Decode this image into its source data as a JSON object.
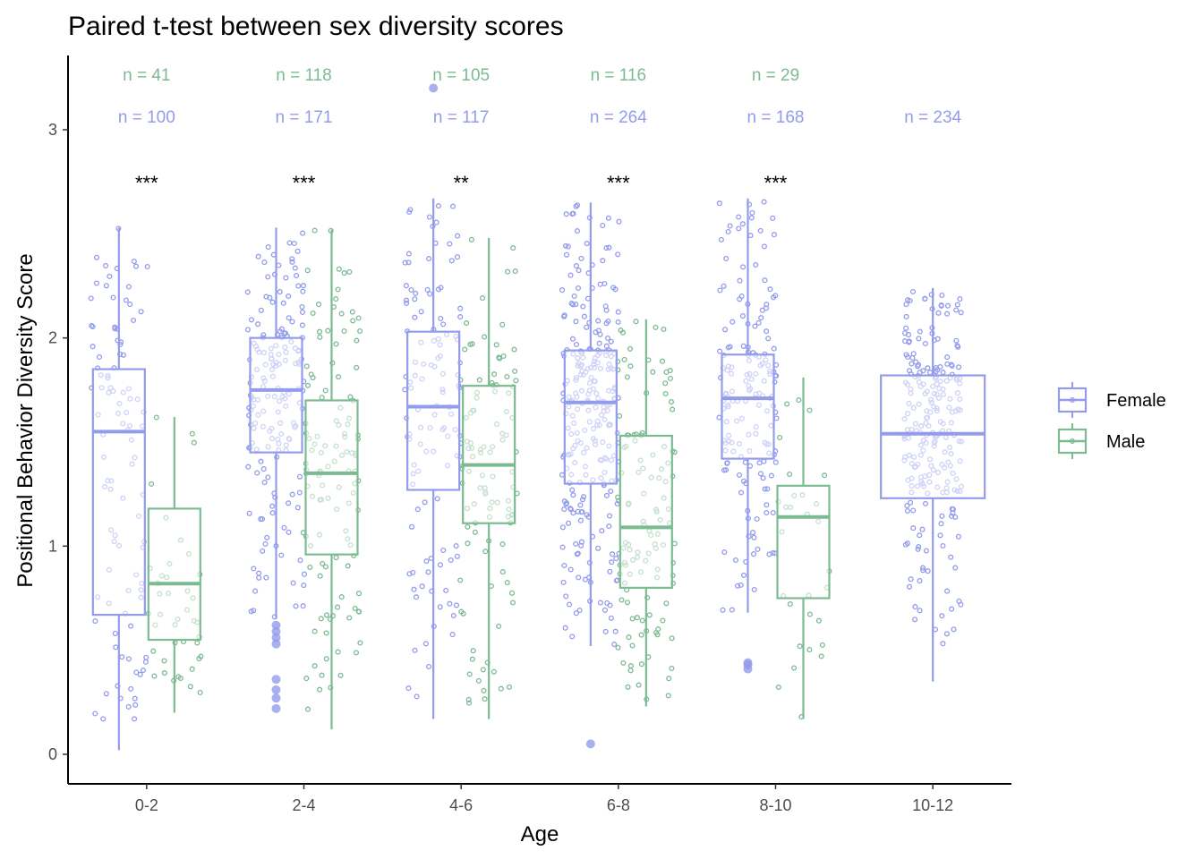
{
  "colors": {
    "Female": "#939CEB",
    "Male": "#7CBB92"
  },
  "chart_data": {
    "type": "box",
    "title": "Paired t-test between sex diversity scores",
    "xlabel": "Age",
    "ylabel": "Positional Behavior Diversity Score",
    "ylim": [
      -0.15,
      3.35
    ],
    "yticks": [
      0,
      1,
      2,
      3
    ],
    "categories": [
      "0-2",
      "2-4",
      "4-6",
      "6-8",
      "8-10",
      "10-12"
    ],
    "legend": {
      "position": "right",
      "entries": [
        "Female",
        "Male"
      ]
    },
    "series": [
      {
        "name": "Female",
        "n_labels": [
          "n = 100",
          "n = 171",
          "n = 117",
          "n = 264",
          "n = 168",
          "n = 234"
        ],
        "boxes": [
          {
            "q1": 0.67,
            "median": 1.55,
            "q3": 1.85,
            "whisker_low": 0.02,
            "whisker_high": 2.53,
            "outliers": []
          },
          {
            "q1": 1.45,
            "median": 1.75,
            "q3": 2.0,
            "whisker_low": 0.65,
            "whisker_high": 2.53,
            "outliers": [
              0.22,
              0.27,
              0.31,
              0.36,
              0.53,
              0.56,
              0.59,
              0.62
            ]
          },
          {
            "q1": 1.27,
            "median": 1.67,
            "q3": 2.03,
            "whisker_low": 0.17,
            "whisker_high": 2.67,
            "outliers": [
              3.2
            ]
          },
          {
            "q1": 1.3,
            "median": 1.69,
            "q3": 1.94,
            "whisker_low": 0.52,
            "whisker_high": 2.65,
            "outliers": [
              0.05
            ]
          },
          {
            "q1": 1.42,
            "median": 1.71,
            "q3": 1.92,
            "whisker_low": 0.68,
            "whisker_high": 2.67,
            "outliers": [
              0.41,
              0.43,
              0.44
            ]
          },
          {
            "q1": 1.23,
            "median": 1.54,
            "q3": 1.82,
            "whisker_low": 0.35,
            "whisker_high": 2.24,
            "outliers": []
          }
        ]
      },
      {
        "name": "Male",
        "n_labels": [
          "n = 41",
          "n = 118",
          "n = 105",
          "n = 116",
          "n = 29",
          ""
        ],
        "boxes": [
          {
            "q1": 0.55,
            "median": 0.82,
            "q3": 1.18,
            "whisker_low": 0.2,
            "whisker_high": 1.62,
            "outliers": []
          },
          {
            "q1": 0.96,
            "median": 1.35,
            "q3": 1.7,
            "whisker_low": 0.12,
            "whisker_high": 2.52,
            "outliers": []
          },
          {
            "q1": 1.11,
            "median": 1.39,
            "q3": 1.77,
            "whisker_low": 0.17,
            "whisker_high": 2.48,
            "outliers": []
          },
          {
            "q1": 0.8,
            "median": 1.09,
            "q3": 1.53,
            "whisker_low": 0.23,
            "whisker_high": 2.09,
            "outliers": []
          },
          {
            "q1": 0.75,
            "median": 1.14,
            "q3": 1.29,
            "whisker_low": 0.17,
            "whisker_high": 1.81,
            "outliers": []
          },
          null
        ]
      }
    ],
    "significance": [
      "***",
      "***",
      "**",
      "***",
      "***",
      ""
    ]
  }
}
